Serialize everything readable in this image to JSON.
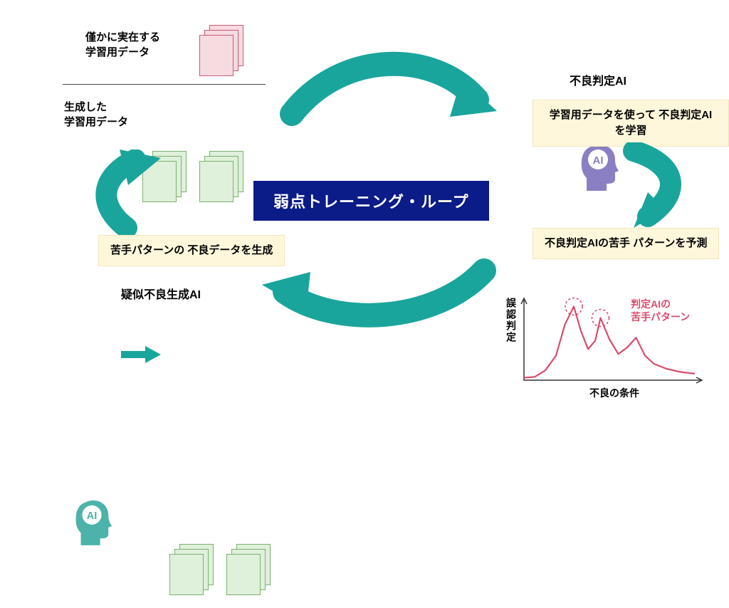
{
  "center": {
    "title": "弱点トレーニング・ループ"
  },
  "colors": {
    "arrow": "#1aa59c",
    "banner_bg": "#0b1b87",
    "banner_text": "#ffffff",
    "box_bg": "#fff7dc",
    "pink_card_fill": "#f6dbe0",
    "pink_card_stroke": "#c85a7a",
    "green_card_fill": "#dff0db",
    "green_card_stroke": "#7bb26f",
    "ai_purple": "#8b7fc4",
    "ai_teal": "#4bb3a9",
    "chart_line": "#d94b6a"
  },
  "topLeft": {
    "label1": "僅かに実在する\n学習用データ",
    "label2": "生成した\n学習用データ"
  },
  "right": {
    "ai_label": "不良判定AI",
    "box1": "学習用データを使って\n不良判定AIを学習",
    "box2": "不良判定AIの苦手\nパターンを予測"
  },
  "left": {
    "box": "苦手パターンの\n不良データを生成",
    "gen_label": "疑似不良生成AI"
  },
  "chart": {
    "y_label": "誤認判定",
    "x_label": "不良の条件",
    "annotation": "判定AIの\n苦手パターン",
    "xlim": [
      0,
      10
    ],
    "ylim": [
      0,
      10
    ],
    "points": [
      [
        0,
        0.3
      ],
      [
        0.6,
        0.4
      ],
      [
        1.2,
        1.2
      ],
      [
        1.8,
        3.0
      ],
      [
        2.3,
        6.8
      ],
      [
        2.8,
        9.0
      ],
      [
        3.2,
        6.0
      ],
      [
        3.6,
        3.8
      ],
      [
        4.0,
        4.8
      ],
      [
        4.3,
        7.6
      ],
      [
        4.8,
        5.0
      ],
      [
        5.3,
        3.2
      ],
      [
        5.8,
        4.0
      ],
      [
        6.3,
        5.2
      ],
      [
        6.8,
        3.0
      ],
      [
        7.3,
        2.0
      ],
      [
        8.0,
        1.4
      ],
      [
        8.8,
        1.0
      ],
      [
        9.6,
        0.8
      ]
    ],
    "circle_peaks": [
      [
        2.8,
        9.0
      ],
      [
        4.3,
        7.6
      ]
    ],
    "line_color": "#d94b6a",
    "axis_color": "#333333"
  },
  "cards": {
    "pink": {
      "count": 3,
      "fill": "#f6dbe0",
      "stroke": "#c85a7a"
    },
    "green_top": {
      "count": 6,
      "fill": "#dff0db",
      "stroke": "#7bb26f"
    },
    "green_bottom": {
      "count": 6,
      "fill": "#dff0db",
      "stroke": "#7bb26f"
    }
  }
}
